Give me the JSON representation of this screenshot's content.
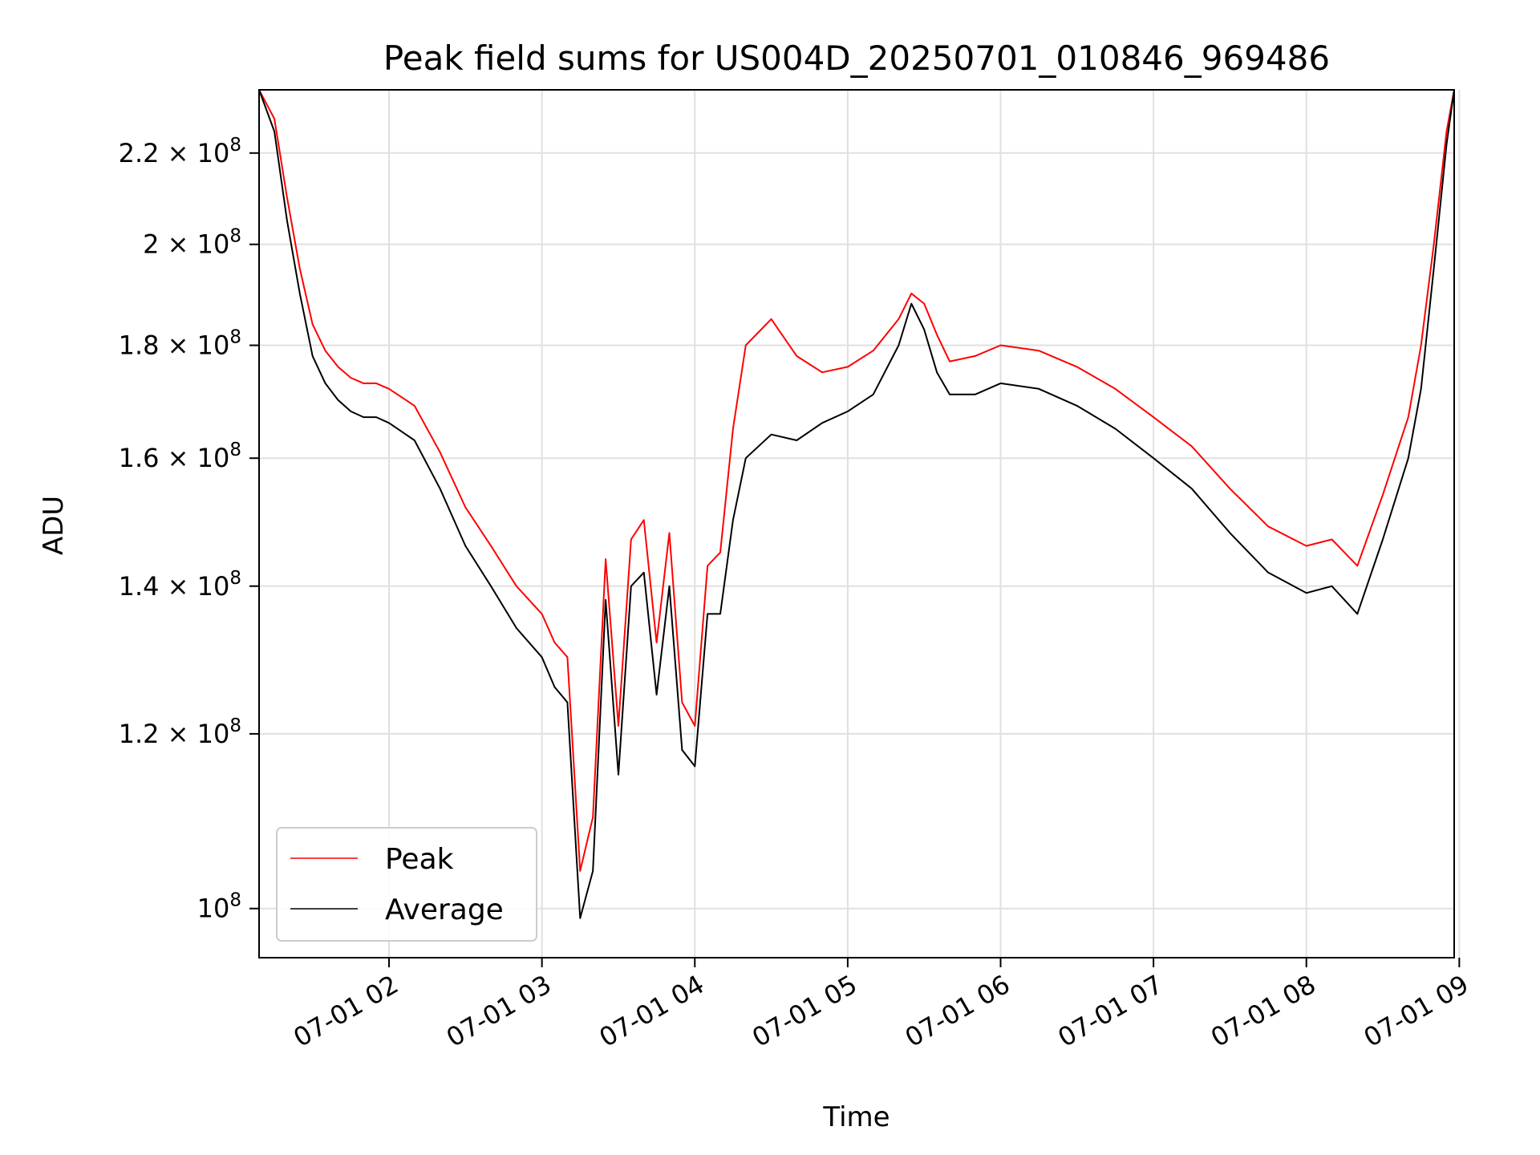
{
  "chart_data": {
    "type": "line",
    "title": "Peak field sums for US004D_20250701_010846_969486",
    "xlabel": "Time",
    "ylabel": "ADU",
    "yscale": "log",
    "ylim": [
      95000000,
      235000000
    ],
    "xlim": [
      "07-01 01:09",
      "07-01 08:58"
    ],
    "grid": true,
    "legend_position": "lower-left",
    "x_ticks": [
      "07-01 02",
      "07-01 03",
      "07-01 04",
      "07-01 05",
      "07-01 06",
      "07-01 07",
      "07-01 08",
      "07-01 09"
    ],
    "y_ticks": [
      {
        "value": 100000000,
        "mantissa": "10",
        "exponent": "8",
        "has_coef": false
      },
      {
        "value": 120000000,
        "mantissa": "1.2 × 10",
        "exponent": "8",
        "has_coef": true
      },
      {
        "value": 140000000,
        "mantissa": "1.4 × 10",
        "exponent": "8",
        "has_coef": true
      },
      {
        "value": 160000000,
        "mantissa": "1.6 × 10",
        "exponent": "8",
        "has_coef": true
      },
      {
        "value": 180000000,
        "mantissa": "1.8 × 10",
        "exponent": "8",
        "has_coef": true
      },
      {
        "value": 200000000,
        "mantissa": "2 × 10",
        "exponent": "8",
        "has_coef": true
      },
      {
        "value": 220000000,
        "mantissa": "2.2 × 10",
        "exponent": "8",
        "has_coef": true
      }
    ],
    "colors": {
      "peak": "#ff0000",
      "average": "#000000",
      "grid": "#e0e0e0"
    },
    "series": [
      {
        "name": "Average",
        "color": "#000000",
        "x": [
          "07-01 01:09",
          "07-01 01:15",
          "07-01 01:20",
          "07-01 01:25",
          "07-01 01:30",
          "07-01 01:35",
          "07-01 01:40",
          "07-01 01:45",
          "07-01 01:50",
          "07-01 01:55",
          "07-01 02:00",
          "07-01 02:10",
          "07-01 02:20",
          "07-01 02:30",
          "07-01 02:40",
          "07-01 02:50",
          "07-01 03:00",
          "07-01 03:05",
          "07-01 03:10",
          "07-01 03:15",
          "07-01 03:20",
          "07-01 03:25",
          "07-01 03:30",
          "07-01 03:35",
          "07-01 03:40",
          "07-01 03:45",
          "07-01 03:50",
          "07-01 03:55",
          "07-01 04:00",
          "07-01 04:05",
          "07-01 04:10",
          "07-01 04:15",
          "07-01 04:20",
          "07-01 04:30",
          "07-01 04:40",
          "07-01 04:50",
          "07-01 05:00",
          "07-01 05:10",
          "07-01 05:20",
          "07-01 05:25",
          "07-01 05:30",
          "07-01 05:35",
          "07-01 05:40",
          "07-01 05:50",
          "07-01 06:00",
          "07-01 06:15",
          "07-01 06:30",
          "07-01 06:45",
          "07-01 07:00",
          "07-01 07:15",
          "07-01 07:30",
          "07-01 07:45",
          "07-01 08:00",
          "07-01 08:10",
          "07-01 08:20",
          "07-01 08:30",
          "07-01 08:40",
          "07-01 08:45",
          "07-01 08:50",
          "07-01 08:55",
          "07-01 08:58"
        ],
        "values": [
          235000000,
          225000000,
          205000000,
          190000000,
          178000000,
          173000000,
          170000000,
          168000000,
          167000000,
          167000000,
          166000000,
          163000000,
          155000000,
          146000000,
          140000000,
          134000000,
          130000000,
          126000000,
          124000000,
          99000000,
          104000000,
          138000000,
          115000000,
          140000000,
          142000000,
          125000000,
          140000000,
          118000000,
          116000000,
          136000000,
          136000000,
          150000000,
          160000000,
          164000000,
          163000000,
          166000000,
          168000000,
          171000000,
          180000000,
          188000000,
          183000000,
          175000000,
          171000000,
          171000000,
          173000000,
          172000000,
          169000000,
          165000000,
          160000000,
          155000000,
          148000000,
          142000000,
          139000000,
          140000000,
          136000000,
          147000000,
          160000000,
          172000000,
          195000000,
          222000000,
          235000000
        ]
      },
      {
        "name": "Peak",
        "color": "#ff0000",
        "x": [
          "07-01 01:09",
          "07-01 01:15",
          "07-01 01:20",
          "07-01 01:25",
          "07-01 01:30",
          "07-01 01:35",
          "07-01 01:40",
          "07-01 01:45",
          "07-01 01:50",
          "07-01 01:55",
          "07-01 02:00",
          "07-01 02:10",
          "07-01 02:20",
          "07-01 02:30",
          "07-01 02:40",
          "07-01 02:50",
          "07-01 03:00",
          "07-01 03:05",
          "07-01 03:10",
          "07-01 03:15",
          "07-01 03:20",
          "07-01 03:25",
          "07-01 03:30",
          "07-01 03:35",
          "07-01 03:40",
          "07-01 03:45",
          "07-01 03:50",
          "07-01 03:55",
          "07-01 04:00",
          "07-01 04:05",
          "07-01 04:10",
          "07-01 04:15",
          "07-01 04:20",
          "07-01 04:30",
          "07-01 04:40",
          "07-01 04:50",
          "07-01 05:00",
          "07-01 05:10",
          "07-01 05:20",
          "07-01 05:25",
          "07-01 05:30",
          "07-01 05:35",
          "07-01 05:40",
          "07-01 05:50",
          "07-01 06:00",
          "07-01 06:15",
          "07-01 06:30",
          "07-01 06:45",
          "07-01 07:00",
          "07-01 07:15",
          "07-01 07:30",
          "07-01 07:45",
          "07-01 08:00",
          "07-01 08:10",
          "07-01 08:20",
          "07-01 08:30",
          "07-01 08:40",
          "07-01 08:45",
          "07-01 08:50",
          "07-01 08:55",
          "07-01 08:58"
        ],
        "values": [
          235000000,
          228000000,
          210000000,
          195000000,
          184000000,
          179000000,
          176000000,
          174000000,
          173000000,
          173000000,
          172000000,
          169000000,
          161000000,
          152000000,
          146000000,
          140000000,
          136000000,
          132000000,
          130000000,
          104000000,
          110000000,
          144000000,
          121000000,
          147000000,
          150000000,
          132000000,
          148000000,
          124000000,
          121000000,
          143000000,
          145000000,
          165000000,
          180000000,
          185000000,
          178000000,
          175000000,
          176000000,
          179000000,
          185000000,
          190000000,
          188000000,
          182000000,
          177000000,
          178000000,
          180000000,
          179000000,
          176000000,
          172000000,
          167000000,
          162000000,
          155000000,
          149000000,
          146000000,
          147000000,
          143000000,
          154000000,
          167000000,
          180000000,
          200000000,
          225000000,
          235000000
        ]
      }
    ]
  }
}
